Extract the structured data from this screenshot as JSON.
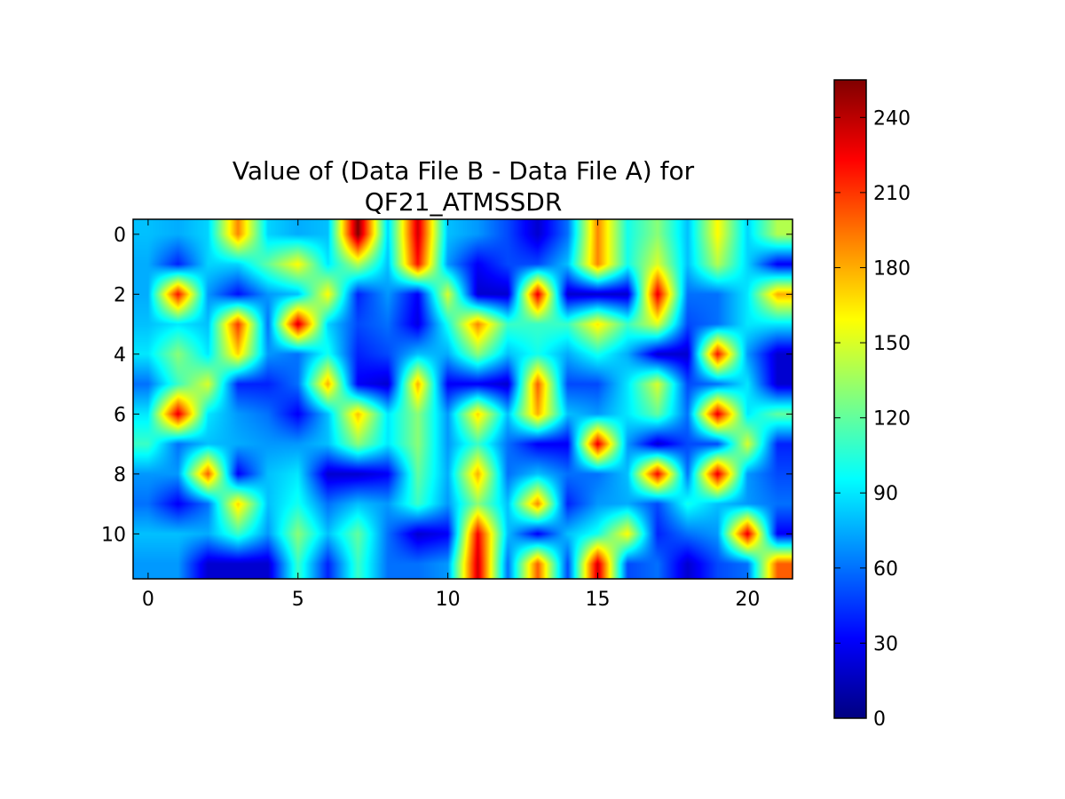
{
  "chart_data": {
    "type": "heatmap",
    "title_lines": [
      "Value of (Data File B - Data File A) for",
      "QF21_ATMSSDR"
    ],
    "xlabel": "",
    "ylabel": "",
    "columns": 22,
    "rows": 12,
    "xlim": [
      -0.5,
      21.5
    ],
    "ylim": [
      11.5,
      -0.5
    ],
    "x_ticks": [
      0,
      5,
      10,
      15,
      20
    ],
    "y_ticks": [
      0,
      2,
      4,
      6,
      8,
      10
    ],
    "colorbar": {
      "colormap": "jet",
      "min": 0,
      "max": 255,
      "ticks": [
        0,
        30,
        60,
        90,
        120,
        150,
        180,
        210,
        240
      ]
    },
    "interpolation": "bilinear",
    "grid": false,
    "values": [
      [
        80,
        75,
        85,
        190,
        85,
        75,
        80,
        255,
        85,
        235,
        80,
        70,
        50,
        20,
        60,
        190,
        100,
        130,
        80,
        160,
        85,
        140
      ],
      [
        75,
        40,
        85,
        85,
        120,
        160,
        90,
        140,
        80,
        220,
        70,
        30,
        50,
        50,
        80,
        190,
        100,
        150,
        80,
        140,
        85,
        30
      ],
      [
        75,
        220,
        70,
        35,
        70,
        80,
        160,
        40,
        70,
        30,
        150,
        20,
        20,
        230,
        20,
        20,
        20,
        230,
        60,
        60,
        90,
        180
      ],
      [
        80,
        90,
        80,
        210,
        60,
        235,
        85,
        50,
        60,
        25,
        100,
        190,
        110,
        110,
        110,
        165,
        110,
        150,
        50,
        60,
        90,
        90
      ],
      [
        90,
        130,
        90,
        170,
        70,
        60,
        100,
        40,
        50,
        80,
        75,
        130,
        80,
        100,
        75,
        100,
        75,
        20,
        20,
        220,
        70,
        20
      ],
      [
        60,
        110,
        150,
        40,
        40,
        60,
        180,
        30,
        20,
        180,
        30,
        30,
        20,
        200,
        50,
        50,
        90,
        150,
        50,
        60,
        90,
        20
      ],
      [
        90,
        230,
        90,
        70,
        60,
        30,
        80,
        175,
        90,
        130,
        70,
        170,
        80,
        180,
        80,
        70,
        90,
        120,
        60,
        230,
        90,
        120
      ],
      [
        110,
        60,
        80,
        75,
        70,
        70,
        80,
        130,
        90,
        130,
        70,
        110,
        60,
        30,
        30,
        230,
        70,
        20,
        50,
        50,
        150,
        40
      ],
      [
        70,
        70,
        200,
        30,
        80,
        90,
        20,
        20,
        30,
        120,
        75,
        180,
        60,
        80,
        60,
        60,
        80,
        225,
        60,
        230,
        70,
        50
      ],
      [
        60,
        30,
        60,
        170,
        80,
        100,
        60,
        80,
        70,
        110,
        70,
        130,
        80,
        190,
        40,
        70,
        75,
        50,
        100,
        80,
        70,
        60
      ],
      [
        80,
        80,
        75,
        110,
        70,
        130,
        80,
        120,
        60,
        20,
        30,
        225,
        80,
        30,
        80,
        100,
        160,
        40,
        60,
        70,
        230,
        30
      ],
      [
        70,
        70,
        20,
        20,
        20,
        110,
        40,
        110,
        60,
        60,
        70,
        235,
        60,
        200,
        50,
        235,
        50,
        60,
        20,
        50,
        60,
        200
      ]
    ]
  }
}
